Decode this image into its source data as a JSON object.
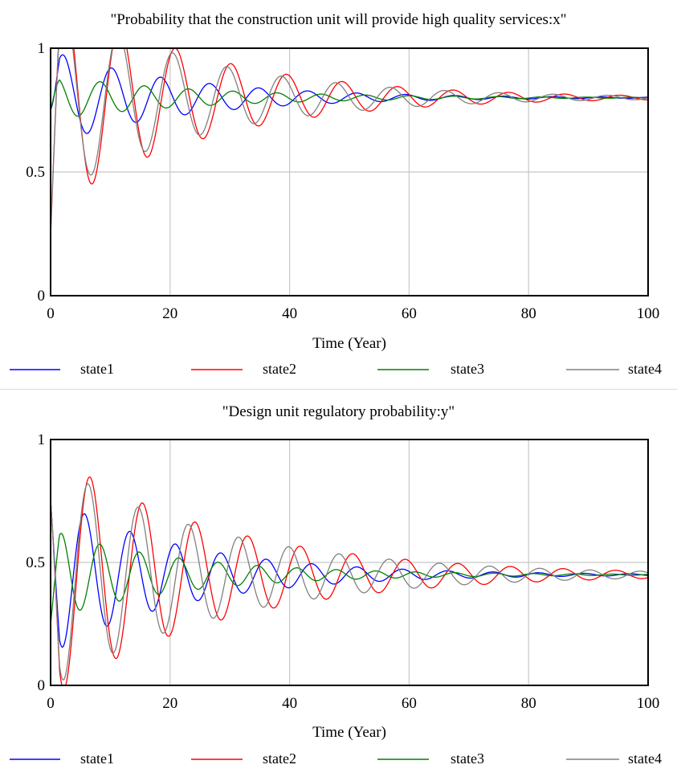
{
  "chart_data": [
    {
      "type": "line",
      "title": "\"Probability that the construction unit will provide high quality services:x\"",
      "xlabel": "Time (Year)",
      "ylabel": "",
      "xlim": [
        0,
        100
      ],
      "ylim": [
        0,
        1
      ],
      "x_ticks": [
        "0",
        "20",
        "40",
        "60",
        "80",
        "100"
      ],
      "y_ticks": [
        "0",
        "0.5",
        "1"
      ],
      "grid": true,
      "legend_position": "bottom",
      "series": [
        {
          "name": "state1",
          "color": "#0000ff",
          "start": 0.75,
          "eq": 0.8,
          "amp": 0.19,
          "period": 8.2,
          "decay": 0.045,
          "phase": 0.0
        },
        {
          "name": "state2",
          "color": "#ff0000",
          "start": 0.24,
          "eq": 0.8,
          "amp": 0.46,
          "period": 9.3,
          "decay": 0.04,
          "phase": 0.0
        },
        {
          "name": "state3",
          "color": "#008000",
          "start": 0.75,
          "eq": 0.8,
          "amp": 0.09,
          "period": 7.4,
          "decay": 0.04,
          "phase": 0.8
        },
        {
          "name": "state4",
          "color": "#808080",
          "start": 0.26,
          "eq": 0.8,
          "amp": 0.41,
          "period": 9.1,
          "decay": 0.04,
          "phase": 0.0
        }
      ]
    },
    {
      "type": "line",
      "title": "\"Design unit regulatory probability:y\"",
      "xlabel": "Time (Year)",
      "ylabel": "",
      "xlim": [
        0,
        100
      ],
      "ylim": [
        0,
        1
      ],
      "x_ticks": [
        "0",
        "20",
        "40",
        "60",
        "80",
        "100"
      ],
      "y_ticks": [
        "0",
        "0.5",
        "1"
      ],
      "grid": true,
      "legend_position": "bottom",
      "series": [
        {
          "name": "state1",
          "color": "#0000ff",
          "start": 0.75,
          "eq": 0.45,
          "amp": 0.32,
          "period": 7.6,
          "decay": 0.045,
          "phase": 0.0
        },
        {
          "name": "state2",
          "color": "#ff0000",
          "start": 0.75,
          "eq": 0.45,
          "amp": 0.5,
          "period": 8.8,
          "decay": 0.035,
          "phase": 0.0
        },
        {
          "name": "state3",
          "color": "#008000",
          "start": 0.25,
          "eq": 0.45,
          "amp": 0.18,
          "period": 6.6,
          "decay": 0.045,
          "phase": 0.0
        },
        {
          "name": "state4",
          "color": "#808080",
          "start": 0.75,
          "eq": 0.45,
          "amp": 0.46,
          "period": 8.4,
          "decay": 0.035,
          "phase": 0.0
        }
      ]
    }
  ]
}
